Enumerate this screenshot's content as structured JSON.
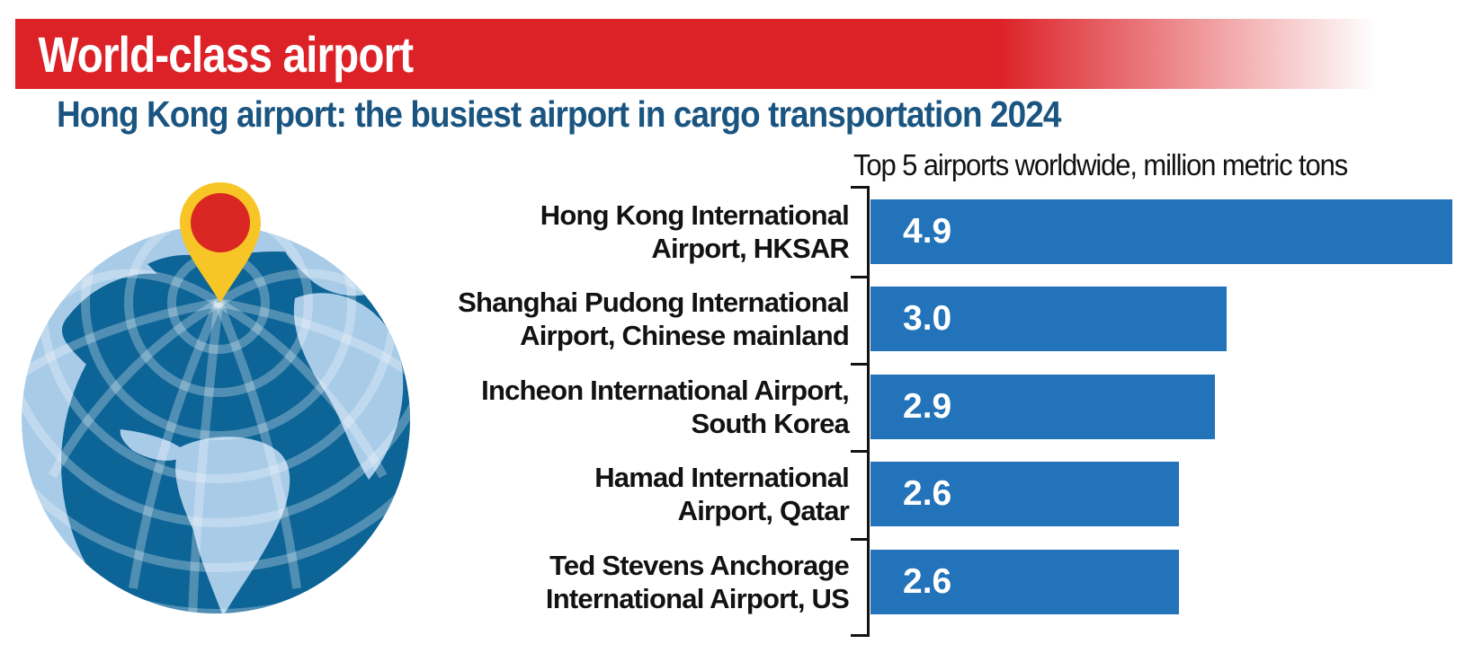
{
  "banner": {
    "title": "World-class airport",
    "bg_color": "#dc2127",
    "text_color": "#ffffff"
  },
  "headline": {
    "text": "Hong Kong airport: the busiest airport in cargo transportation 2024",
    "color": "#1a5581"
  },
  "chart_data": {
    "type": "bar",
    "orientation": "horizontal",
    "title": "Top 5 airports worldwide, million metric tons",
    "unit": "million metric tons",
    "categories": [
      "Hong Kong International Airport, HKSAR",
      "Shanghai Pudong International Airport, Chinese mainland",
      "Incheon International Airport, South Korea",
      "Hamad International Airport, Qatar",
      "Ted Stevens Anchorage International Airport, US"
    ],
    "categories_lines": [
      [
        "Hong Kong International",
        "Airport, HKSAR"
      ],
      [
        "Shanghai Pudong International",
        "Airport, Chinese mainland"
      ],
      [
        "Incheon International Airport,",
        "South Korea"
      ],
      [
        "Hamad International",
        "Airport, Qatar"
      ],
      [
        "Ted Stevens Anchorage",
        "International Airport, US"
      ]
    ],
    "values": [
      4.9,
      3.0,
      2.9,
      2.6,
      2.6
    ],
    "value_labels": [
      "4.9",
      "3.0",
      "2.9",
      "2.6",
      "2.6"
    ],
    "xlim": [
      0,
      5.0
    ],
    "bar_color": "#2273b9",
    "value_label_color": "#ffffff",
    "axis_color": "#121212",
    "grid": false,
    "legend": false
  },
  "globe": {
    "ocean_color": "#0d6496",
    "land_color": "#a8cbe8",
    "grid_color": "#ffffff",
    "pin_color": "#f8c526",
    "pin_dot_color": "#da2723"
  }
}
